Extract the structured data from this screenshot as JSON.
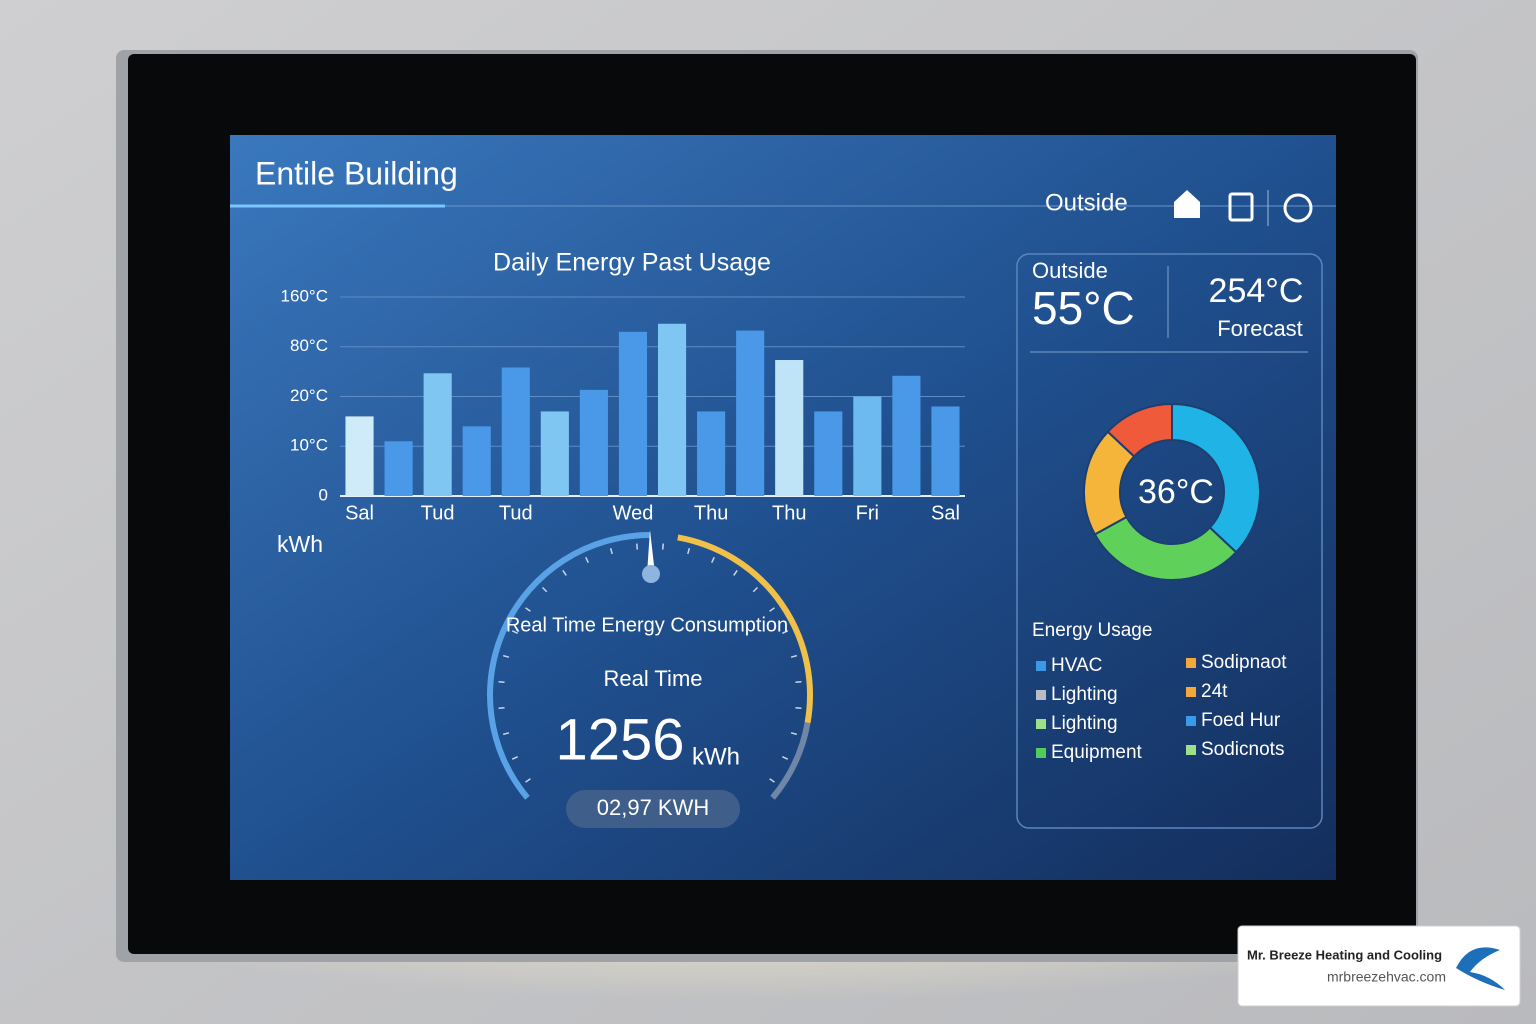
{
  "header": {
    "title": "Entile Building",
    "outside": "Outside"
  },
  "chart_data": [
    {
      "type": "bar",
      "title": "Daily Energy Past Usage",
      "ylabel": "kWh",
      "categories": [
        "Sal",
        null,
        "Tud",
        null,
        "Tud",
        null,
        null,
        "Wed",
        null,
        "Thu",
        null,
        "Thu",
        null,
        "Fri",
        null,
        "Sal"
      ],
      "values": [
        16,
        11,
        48,
        14,
        55,
        17,
        28,
        104,
        117,
        17,
        106,
        64,
        17,
        20,
        45,
        18
      ],
      "colors": [
        "#cfeaf8",
        "#4a98e8",
        "#7fc6f2",
        "#4a98e8",
        "#4a98e8",
        "#7fc6f2",
        "#4a98e8",
        "#4a98e8",
        "#7fc6f2",
        "#4a98e8",
        "#4a98e8",
        "#bfe4f7",
        "#4a98e8",
        "#6cbaf0",
        "#4a98e8",
        "#4a98e8"
      ],
      "ylim": [
        0,
        160
      ],
      "yticks": [
        {
          "value": 0,
          "label": "0"
        },
        {
          "value": 10,
          "label": "10°C"
        },
        {
          "value": 20,
          "label": "20°C"
        },
        {
          "value": 80,
          "label": "80°C"
        },
        {
          "value": 160,
          "label": "160°C"
        }
      ],
      "grid": true
    },
    {
      "type": "pie",
      "center_label": "36°C",
      "values": [
        37,
        30,
        20,
        13
      ],
      "colors": [
        "#1fb3e6",
        "#5fd15a",
        "#f5b43a",
        "#ee5a3a"
      ]
    }
  ],
  "weather": {
    "outside_label": "Outside",
    "outside_value": "55°C",
    "forecast_value": "254°C",
    "forecast_label": "Forecast"
  },
  "gauge": {
    "title": "Real Time Energy Consumption",
    "subtitle": "Real Time",
    "value": "1256",
    "unit": "kWh",
    "pill": "02,97 KWH"
  },
  "legend": {
    "title": "Energy Usage",
    "items": [
      {
        "label": "HVAC",
        "color": "#3a9ae8"
      },
      {
        "label": "Lighting",
        "color": "#b8bcc4"
      },
      {
        "label": "Lighting",
        "color": "#9ee08a"
      },
      {
        "label": "Equipment",
        "color": "#4fcf5a"
      },
      {
        "label": "Sodipnaot",
        "color": "#f5a83a"
      },
      {
        "label": "24t",
        "color": "#f5a83a"
      },
      {
        "label": "Foed Hur",
        "color": "#3a9ae8"
      },
      {
        "label": "Sodicnots",
        "color": "#9ee08a"
      }
    ]
  },
  "watermark": {
    "name": "Mr. Breeze Heating and Cooling",
    "url": "mrbreezehvac.com"
  }
}
